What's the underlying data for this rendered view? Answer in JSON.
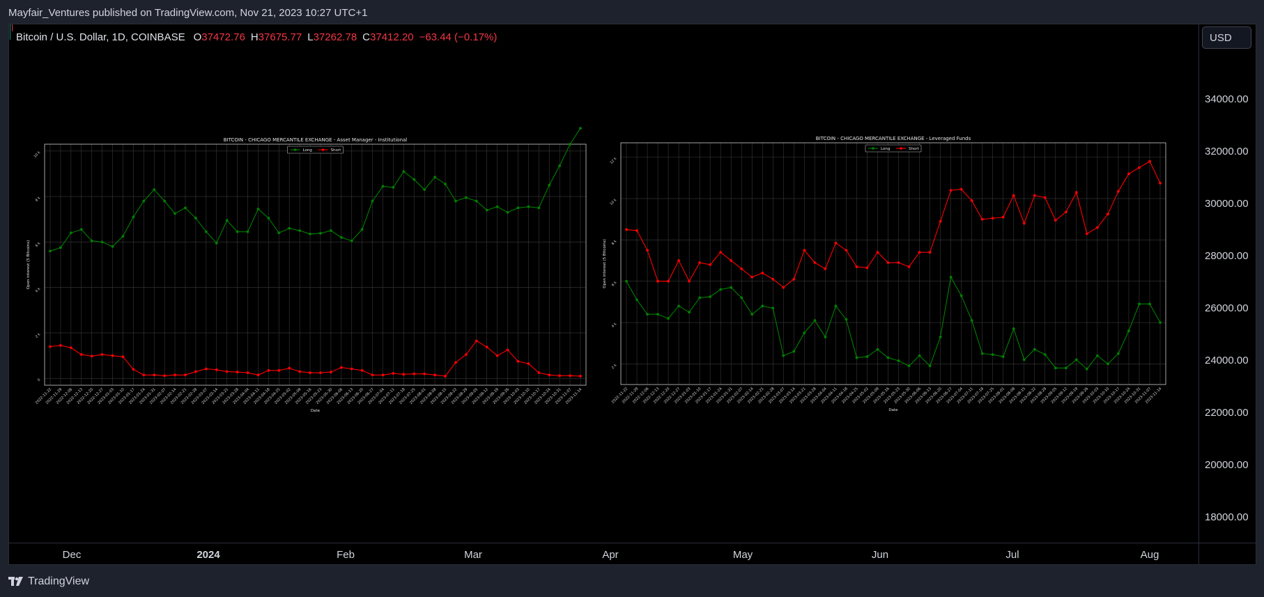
{
  "header": {
    "publisher": "Mayfair_Ventures published on TradingView.com, Nov 21, 2023 10:27 UTC+1"
  },
  "legend": {
    "title": "Bitcoin / U.S. Dollar, 1D, COINBASE",
    "o_label": "O",
    "o_value": "37472.76",
    "h_label": "H",
    "h_value": "37675.77",
    "l_label": "L",
    "l_value": "37262.78",
    "c_label": "C",
    "c_value": "37412.20",
    "change": "−63.44 (−0.17%)"
  },
  "currency_button": "USD",
  "price_scale": [
    "34000.00",
    "32000.00",
    "30000.00",
    "28000.00",
    "26000.00",
    "24000.00",
    "22000.00",
    "20000.00",
    "18000.00"
  ],
  "time_axis": [
    "Dec",
    "2024",
    "Feb",
    "Mar",
    "Apr",
    "May",
    "Jun",
    "Jul",
    "Aug"
  ],
  "footer": {
    "brand": "TradingView"
  },
  "colors": {
    "long": "#008000",
    "short": "#ff0000",
    "background": "#000000",
    "grid": "#3a3a3a"
  },
  "chart_data": [
    {
      "type": "line",
      "title": "BITCOIN - CHICAGO MERCANTILE EXCHANGE - Asset Manager - Institutional",
      "xlabel": "Date",
      "ylabel": "Open interest (5 Bitcoins)",
      "ylim": [
        -0.3,
        10.3
      ],
      "yticks": [
        0,
        2,
        4,
        6,
        8,
        10
      ],
      "ytick_labels": [
        "0",
        "2 k",
        "4 k",
        "6 k",
        "8 k",
        "10 k"
      ],
      "legend_position": "top-center",
      "grid": true,
      "categories": [
        "2022-11-22",
        "2022-11-29",
        "2022-12-06",
        "2022-12-13",
        "2022-12-20",
        "2022-12-27",
        "2023-01-03",
        "2023-01-10",
        "2023-01-17",
        "2023-01-24",
        "2023-01-31",
        "2023-02-07",
        "2023-02-14",
        "2023-02-21",
        "2023-02-28",
        "2023-03-07",
        "2023-03-14",
        "2023-03-21",
        "2023-03-28",
        "2023-04-04",
        "2023-04-11",
        "2023-04-18",
        "2023-04-25",
        "2023-05-02",
        "2023-05-09",
        "2023-05-16",
        "2023-05-23",
        "2023-05-30",
        "2023-06-06",
        "2023-06-13",
        "2023-06-20",
        "2023-06-27",
        "2023-07-04",
        "2023-07-11",
        "2023-07-18",
        "2023-07-25",
        "2023-08-01",
        "2023-08-08",
        "2023-08-15",
        "2023-08-22",
        "2023-08-29",
        "2023-09-05",
        "2023-09-12",
        "2023-09-19",
        "2023-09-26",
        "2023-10-03",
        "2023-10-10",
        "2023-10-17",
        "2023-10-24",
        "2023-10-31",
        "2023-11-07",
        "2023-11-14"
      ],
      "xtick_labels": [
        "2022-11-22",
        "2022-11-29",
        "2022-12-06",
        "2022-12-13",
        "2022-12-20",
        "2022-12-27",
        "2023-01-03",
        "2023-01-10",
        "2023-01-17",
        "2023-01-24",
        "2023-01-31",
        "2023-02-07",
        "2023-02-14",
        "2023-02-21",
        "2023-02-28",
        "2023-03-07",
        "2023-03-14",
        "2023-03-21",
        "2023-03-28",
        "2023-04-04",
        "2023-04-11",
        "2023-04-18",
        "2023-04-25",
        "2023-05-02",
        "2023-05-09",
        "2023-05-16",
        "2023-05-23",
        "2023-05-30",
        "2023-06-06",
        "2023-06-13",
        "2023-06-20",
        "2023-06-27",
        "2023-07-04",
        "2023-07-11",
        "2023-07-18",
        "2023-07-25",
        "2023-08-01",
        "2023-08-08",
        "2023-08-15",
        "2023-08-22",
        "2023-08-29",
        "2023-09-05",
        "2023-09-12",
        "2023-09-19",
        "2023-09-26",
        "2023-10-03",
        "2023-10-10",
        "2023-10-17",
        "2023-10-24",
        "2023-10-31",
        "2023-11-07",
        "2023-11-14"
      ],
      "series": [
        {
          "name": "Long",
          "color": "#008000",
          "values": [
            5.6,
            5.75,
            6.4,
            6.55,
            6.05,
            6.0,
            5.8,
            6.25,
            7.1,
            7.8,
            8.3,
            7.8,
            7.25,
            7.5,
            7.05,
            6.45,
            5.95,
            6.95,
            6.45,
            6.45,
            7.45,
            7.05,
            6.4,
            6.6,
            6.5,
            6.35,
            6.38,
            6.5,
            6.2,
            6.05,
            6.55,
            7.8,
            8.45,
            8.4,
            9.1,
            8.75,
            8.3,
            8.85,
            8.55,
            7.8,
            7.95,
            7.8,
            7.4,
            7.55,
            7.3,
            7.5,
            7.55,
            7.5,
            8.5,
            9.35,
            10.3,
            11.0
          ]
        },
        {
          "name": "Short",
          "color": "#ff0000",
          "values": [
            1.4,
            1.45,
            1.35,
            1.05,
            0.98,
            1.05,
            1.0,
            0.95,
            0.4,
            0.15,
            0.15,
            0.12,
            0.15,
            0.15,
            0.3,
            0.42,
            0.38,
            0.3,
            0.28,
            0.25,
            0.15,
            0.35,
            0.35,
            0.45,
            0.3,
            0.25,
            0.25,
            0.28,
            0.48,
            0.42,
            0.35,
            0.15,
            0.15,
            0.22,
            0.18,
            0.2,
            0.2,
            0.15,
            0.1,
            0.7,
            1.05,
            1.65,
            1.38,
            1.0,
            1.25,
            0.75,
            0.65,
            0.25,
            0.15,
            0.12,
            0.12,
            0.1
          ]
        }
      ]
    },
    {
      "type": "line",
      "title": "BITCOIN - CHICAGO MERCANTILE EXCHANGE - Leveraged Funds",
      "xlabel": "Date",
      "ylabel": "Open interest (5 Bitcoins)",
      "ylim": [
        1.0,
        12.7
      ],
      "yticks": [
        2,
        4,
        6,
        8,
        10,
        12
      ],
      "ytick_labels": [
        "2 k",
        "4 k",
        "6 k",
        "8 k",
        "10 k",
        "12 k"
      ],
      "legend_position": "top-center",
      "grid": true,
      "categories": [
        "2022-11-22",
        "2022-11-29",
        "2022-12-06",
        "2022-12-13",
        "2022-12-20",
        "2022-12-27",
        "2023-01-03",
        "2023-01-10",
        "2023-01-17",
        "2023-01-24",
        "2023-01-31",
        "2023-02-07",
        "2023-02-14",
        "2023-02-21",
        "2023-02-28",
        "2023-03-07",
        "2023-03-14",
        "2023-03-21",
        "2023-03-28",
        "2023-04-04",
        "2023-04-11",
        "2023-04-18",
        "2023-04-25",
        "2023-05-02",
        "2023-05-09",
        "2023-05-16",
        "2023-05-23",
        "2023-05-30",
        "2023-06-06",
        "2023-06-13",
        "2023-06-20",
        "2023-06-27",
        "2023-07-04",
        "2023-07-11",
        "2023-07-18",
        "2023-07-25",
        "2023-08-01",
        "2023-08-08",
        "2023-08-15",
        "2023-08-22",
        "2023-08-29",
        "2023-09-05",
        "2023-09-12",
        "2023-09-19",
        "2023-09-26",
        "2023-10-03",
        "2023-10-10",
        "2023-10-17",
        "2023-10-24",
        "2023-10-31",
        "2023-11-07",
        "2023-11-14"
      ],
      "xtick_labels": [
        "2022-11-22",
        "2022-11-29",
        "2022-12-06",
        "2022-12-13",
        "2022-12-20",
        "2022-12-27",
        "2023-01-03",
        "2023-01-10",
        "2023-01-17",
        "2023-01-24",
        "2023-01-31",
        "2023-02-07",
        "2023-02-14",
        "2023-02-21",
        "2023-02-28",
        "2023-03-07",
        "2023-03-14",
        "2023-03-21",
        "2023-03-28",
        "2023-04-04",
        "2023-04-11",
        "2023-04-18",
        "2023-04-25",
        "2023-05-02",
        "2023-05-09",
        "2023-05-16",
        "2023-05-23",
        "2023-05-30",
        "2023-06-06",
        "2023-06-13",
        "2023-06-20",
        "2023-06-27",
        "2023-07-04",
        "2023-07-11",
        "2023-07-18",
        "2023-07-25",
        "2023-08-01",
        "2023-08-08",
        "2023-08-15",
        "2023-08-22",
        "2023-08-29",
        "2023-09-05",
        "2023-09-12",
        "2023-09-19",
        "2023-09-26",
        "2023-10-03",
        "2023-10-10",
        "2023-10-17",
        "2023-10-24",
        "2023-10-31",
        "2023-11-07",
        "2023-11-14"
      ],
      "series": [
        {
          "name": "Long",
          "color": "#008000",
          "values": [
            6.0,
            5.1,
            4.4,
            4.4,
            4.2,
            4.8,
            4.5,
            5.2,
            5.25,
            5.6,
            5.7,
            5.2,
            4.4,
            4.8,
            4.7,
            2.4,
            2.6,
            3.5,
            4.1,
            3.3,
            4.8,
            4.15,
            2.3,
            2.35,
            2.7,
            2.3,
            2.15,
            1.9,
            2.4,
            1.9,
            3.3,
            6.2,
            5.3,
            4.1,
            2.5,
            2.45,
            2.35,
            3.7,
            2.2,
            2.7,
            2.45,
            1.8,
            1.8,
            2.2,
            1.75,
            2.4,
            2.0,
            2.5,
            3.6,
            4.9,
            4.9,
            4.0
          ]
        },
        {
          "name": "Short",
          "color": "#ff0000",
          "values": [
            8.5,
            8.45,
            7.5,
            6.0,
            6.0,
            7.0,
            6.0,
            6.9,
            6.8,
            7.4,
            7.0,
            6.6,
            6.2,
            6.4,
            6.1,
            5.7,
            6.1,
            7.5,
            6.9,
            6.6,
            7.85,
            7.5,
            6.7,
            6.65,
            7.4,
            6.9,
            6.9,
            6.7,
            7.4,
            7.4,
            8.9,
            10.4,
            10.45,
            9.9,
            9.0,
            9.05,
            9.1,
            10.15,
            8.8,
            10.15,
            10.05,
            8.95,
            9.35,
            10.3,
            8.3,
            8.6,
            9.25,
            10.35,
            11.2,
            11.5,
            11.8,
            10.75
          ]
        }
      ]
    }
  ]
}
